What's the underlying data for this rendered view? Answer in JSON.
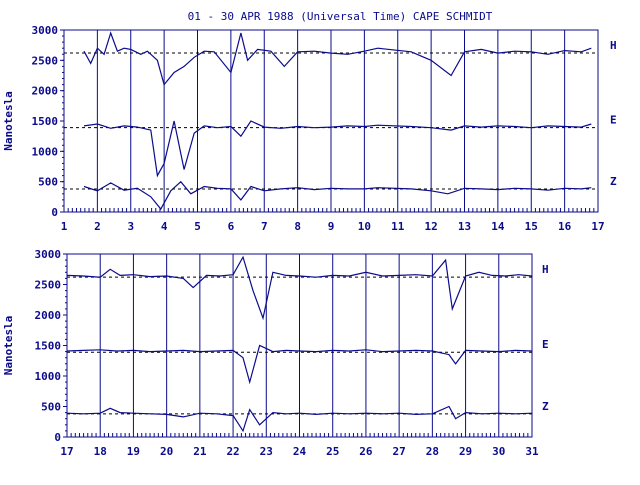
{
  "chart_data": [
    {
      "type": "line",
      "title": "01 - 30 APR 1988 (Universal Time) CAPE SCHMIDT",
      "ylabel": "Nanotesla",
      "xlim": [
        1,
        17
      ],
      "ylim": [
        0,
        3000
      ],
      "x_ticks": [
        1,
        2,
        3,
        4,
        5,
        6,
        7,
        8,
        9,
        10,
        11,
        12,
        13,
        14,
        15,
        16,
        17
      ],
      "y_ticks": [
        0,
        500,
        1000,
        1500,
        2000,
        2500,
        3000
      ],
      "grid": "vertical day lines",
      "baselines": [
        {
          "name": "H",
          "value": 2620
        },
        {
          "name": "E",
          "value": 1390
        },
        {
          "name": "Z",
          "value": 380
        }
      ],
      "series": [
        {
          "name": "H",
          "x": [
            1.6,
            1.8,
            2.0,
            2.2,
            2.4,
            2.6,
            2.8,
            3.0,
            3.3,
            3.5,
            3.8,
            4.0,
            4.3,
            4.6,
            4.9,
            5.2,
            5.5,
            6.0,
            6.3,
            6.5,
            6.8,
            7.2,
            7.6,
            8.0,
            8.5,
            9.0,
            9.5,
            10.0,
            10.4,
            11.4,
            12.0,
            12.6,
            13.0,
            13.5,
            14.0,
            14.5,
            15.0,
            15.5,
            16.0,
            16.5,
            16.8
          ],
          "values": [
            2650,
            2450,
            2700,
            2600,
            2950,
            2650,
            2700,
            2680,
            2600,
            2650,
            2500,
            2100,
            2300,
            2400,
            2550,
            2650,
            2640,
            2300,
            2950,
            2500,
            2680,
            2650,
            2400,
            2640,
            2650,
            2620,
            2600,
            2650,
            2700,
            2640,
            2500,
            2250,
            2640,
            2680,
            2620,
            2650,
            2640,
            2600,
            2660,
            2640,
            2700
          ]
        },
        {
          "name": "E",
          "x": [
            1.6,
            2.0,
            2.4,
            2.8,
            3.2,
            3.6,
            3.8,
            4.0,
            4.3,
            4.6,
            4.9,
            5.2,
            5.6,
            6.0,
            6.3,
            6.6,
            7.0,
            7.5,
            8.0,
            8.5,
            9.0,
            9.5,
            10.0,
            10.4,
            11.4,
            12.0,
            12.6,
            13.0,
            13.5,
            14.0,
            14.5,
            15.0,
            15.5,
            16.0,
            16.5,
            16.8
          ],
          "values": [
            1420,
            1450,
            1380,
            1420,
            1400,
            1350,
            600,
            800,
            1500,
            700,
            1300,
            1420,
            1390,
            1410,
            1250,
            1500,
            1400,
            1380,
            1410,
            1390,
            1400,
            1420,
            1410,
            1430,
            1410,
            1390,
            1350,
            1420,
            1400,
            1420,
            1410,
            1390,
            1420,
            1410,
            1400,
            1450
          ]
        },
        {
          "name": "Z",
          "x": [
            1.6,
            2.0,
            2.4,
            2.8,
            3.2,
            3.6,
            3.9,
            4.2,
            4.5,
            4.8,
            5.2,
            5.6,
            6.0,
            6.3,
            6.6,
            7.0,
            7.5,
            8.0,
            8.5,
            9.0,
            9.5,
            10.0,
            10.4,
            11.4,
            12.0,
            12.5,
            13.0,
            13.5,
            14.0,
            14.5,
            15.0,
            15.5,
            16.0,
            16.5,
            16.8
          ],
          "values": [
            420,
            350,
            480,
            360,
            390,
            250,
            50,
            350,
            500,
            300,
            420,
            390,
            380,
            200,
            420,
            350,
            380,
            400,
            370,
            390,
            380,
            380,
            400,
            380,
            350,
            300,
            390,
            380,
            370,
            390,
            380,
            360,
            390,
            380,
            400
          ]
        }
      ],
      "component_labels": [
        "H",
        "E",
        "Z"
      ]
    },
    {
      "type": "line",
      "title": "",
      "ylabel": "Nanotesla",
      "xlim": [
        17,
        31
      ],
      "ylim": [
        0,
        3000
      ],
      "x_ticks": [
        17,
        18,
        19,
        20,
        21,
        22,
        23,
        24,
        25,
        26,
        27,
        28,
        29,
        30,
        31
      ],
      "y_ticks": [
        0,
        500,
        1000,
        1500,
        2000,
        2500,
        3000
      ],
      "grid": "vertical day lines",
      "baselines": [
        {
          "name": "H",
          "value": 2620
        },
        {
          "name": "E",
          "value": 1390
        },
        {
          "name": "Z",
          "value": 380
        }
      ],
      "series": [
        {
          "name": "H",
          "x": [
            17.0,
            17.5,
            18.0,
            18.3,
            18.6,
            19.0,
            19.5,
            20.0,
            20.5,
            20.8,
            21.2,
            21.6,
            22.0,
            22.3,
            22.6,
            22.9,
            23.2,
            23.6,
            24.0,
            24.5,
            25.0,
            25.5,
            26.0,
            26.5,
            27.0,
            27.5,
            28.0,
            28.4,
            28.6,
            29.0,
            29.4,
            29.8,
            30.2,
            30.6,
            31.0
          ],
          "values": [
            2650,
            2640,
            2620,
            2750,
            2650,
            2660,
            2630,
            2640,
            2600,
            2450,
            2650,
            2640,
            2660,
            2950,
            2400,
            1950,
            2700,
            2650,
            2640,
            2620,
            2650,
            2640,
            2700,
            2640,
            2650,
            2660,
            2640,
            2900,
            2100,
            2640,
            2700,
            2650,
            2640,
            2660,
            2640
          ]
        },
        {
          "name": "E",
          "x": [
            17.0,
            17.5,
            18.0,
            18.5,
            19.0,
            19.5,
            20.0,
            20.5,
            21.0,
            21.5,
            22.0,
            22.3,
            22.5,
            22.8,
            23.2,
            23.6,
            24.0,
            24.5,
            25.0,
            25.5,
            26.0,
            26.5,
            27.0,
            27.5,
            28.0,
            28.5,
            28.7,
            29.0,
            29.5,
            30.0,
            30.5,
            31.0
          ],
          "values": [
            1410,
            1420,
            1430,
            1410,
            1420,
            1400,
            1410,
            1420,
            1400,
            1410,
            1420,
            1300,
            900,
            1500,
            1400,
            1420,
            1410,
            1400,
            1420,
            1410,
            1430,
            1400,
            1410,
            1420,
            1410,
            1350,
            1200,
            1420,
            1410,
            1400,
            1420,
            1410
          ]
        },
        {
          "name": "Z",
          "x": [
            17.0,
            17.5,
            18.0,
            18.3,
            18.6,
            19.0,
            19.5,
            20.0,
            20.5,
            21.0,
            21.5,
            22.0,
            22.3,
            22.5,
            22.8,
            23.2,
            23.6,
            24.0,
            24.5,
            25.0,
            25.5,
            26.0,
            26.5,
            27.0,
            27.5,
            28.0,
            28.5,
            28.7,
            29.0,
            29.5,
            30.0,
            30.5,
            31.0
          ],
          "values": [
            390,
            380,
            390,
            470,
            400,
            390,
            380,
            370,
            330,
            390,
            380,
            350,
            100,
            450,
            200,
            400,
            380,
            390,
            370,
            390,
            380,
            390,
            380,
            390,
            370,
            380,
            500,
            300,
            400,
            380,
            390,
            380,
            390
          ]
        }
      ],
      "component_labels": [
        "H",
        "E",
        "Z"
      ]
    }
  ],
  "colors": {
    "trace": "#0b0b8c",
    "axis": "#0b0b8c",
    "baseline": "#000000",
    "background": "#ffffff"
  }
}
